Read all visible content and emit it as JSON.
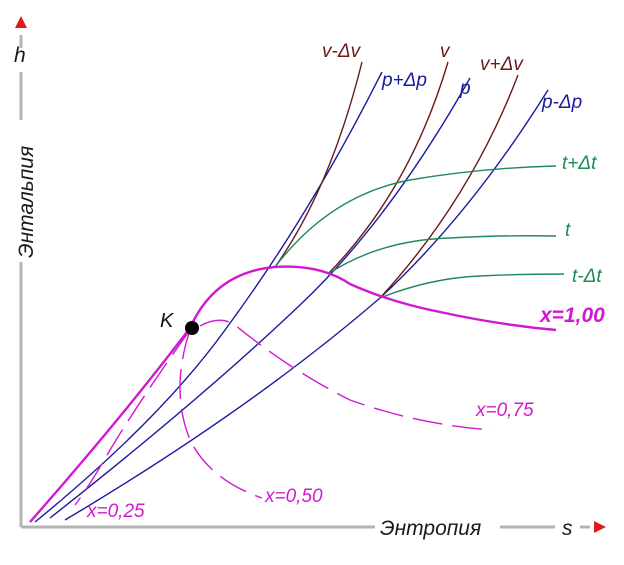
{
  "axes": {
    "y_symbol": "h",
    "y_label": "Энтальпия",
    "x_symbol": "s",
    "x_label": "Энтропия"
  },
  "critical_point": {
    "label": "K"
  },
  "isochores": {
    "v_minus": "v-Δv",
    "v": "v",
    "v_plus": "v+Δv"
  },
  "isobars": {
    "p_plus": "p+Δp",
    "p": "p",
    "p_minus": "p-Δp"
  },
  "isotherms": {
    "t_plus": "t+Δt",
    "t": "t",
    "t_minus": "t-Δt"
  },
  "dryness_lines": {
    "x100": "x=1,00",
    "x075": "x=0,75",
    "x050": "x=0,50",
    "x025": "x=0,25"
  },
  "colors": {
    "axis": "#b4b4b4",
    "arrow": "#e01a1a",
    "isobar": "#1a1aa0",
    "isochore": "#6b1a1a",
    "isotherm": "#1f8a55",
    "saturation": "#d01ad0"
  }
}
